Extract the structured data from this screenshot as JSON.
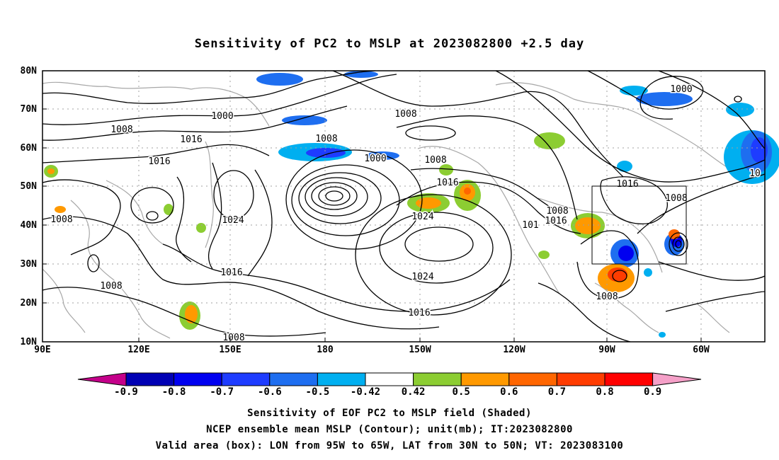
{
  "title": "Sensitivity of PC2 to MSLP at 2023082800 +2.5 day",
  "map": {
    "lat_ticks": [
      "10N",
      "20N",
      "30N",
      "40N",
      "50N",
      "60N",
      "70N",
      "80N"
    ],
    "lon_ticks": [
      "90E",
      "120E",
      "150E",
      "180",
      "150W",
      "120W",
      "90W",
      "60W"
    ],
    "grid": true,
    "box": {
      "lon_range": [
        "95W",
        "65W"
      ],
      "lat_range": [
        "30N",
        "50N"
      ]
    },
    "contour_labels": [
      "1000",
      "1008",
      "1016",
      "1008",
      "1016",
      "1024",
      "1008",
      "1008",
      "1000",
      "1008",
      "1008",
      "1016",
      "1024",
      "1024",
      "1016",
      "1016",
      "1008",
      "1016",
      "1008",
      "1016",
      "1008",
      "1000",
      "1008",
      "1008",
      "10",
      "101",
      "1008"
    ]
  },
  "colorbar": {
    "labels": [
      "-0.9",
      "-0.8",
      "-0.7",
      "-0.6",
      "-0.5",
      "-0.42",
      "0.42",
      "0.5",
      "0.6",
      "0.7",
      "0.8",
      "0.9"
    ],
    "colors": [
      "#c4008a",
      "#0000b4",
      "#0000f0",
      "#1e3cff",
      "#1e6ef0",
      "#00aff0",
      "#ffffff",
      "#8ccd32",
      "#ff9900",
      "#ff6600",
      "#ff3c00",
      "#ff0000",
      "#f5a0c8"
    ]
  },
  "caption": {
    "line1": "Sensitivity of EOF PC2 to MSLP field (Shaded)",
    "line2": "NCEP ensemble mean MSLP (Contour); unit(mb); IT:2023082800",
    "line3": "Valid area (box): LON from 95W to 65W, LAT from 30N to 50N; VT: 2023083100"
  }
}
